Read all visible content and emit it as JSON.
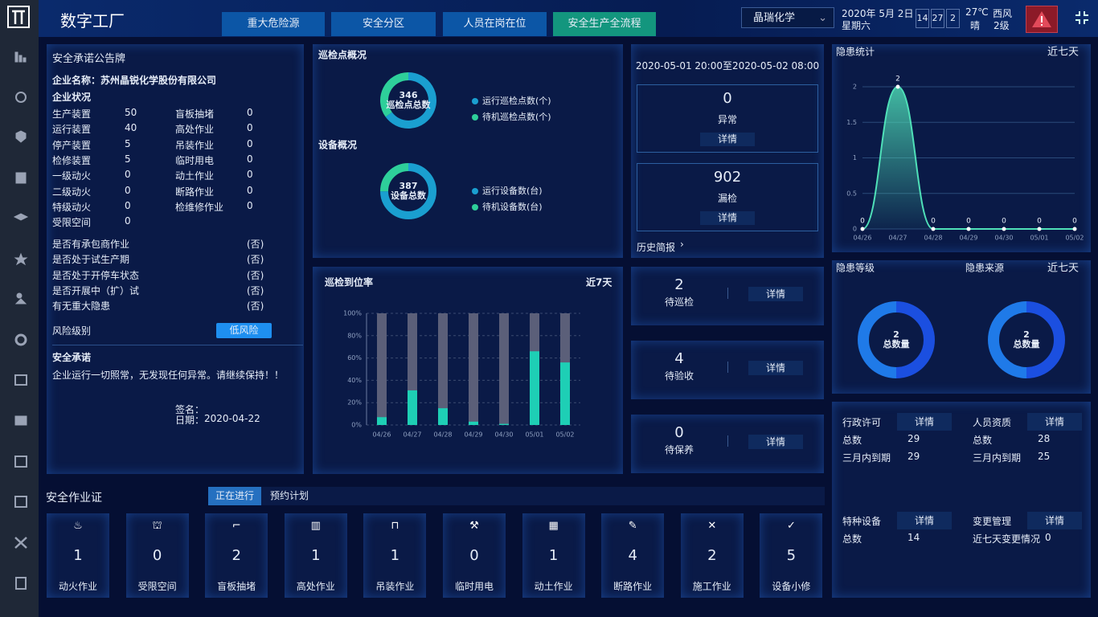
{
  "header": {
    "title": "数字工厂",
    "tabs": [
      "重大危险源",
      "安全分区",
      "人员在岗在位",
      "安全生产全流程"
    ],
    "company": "晶瑞化学",
    "date": "2020年 5月 2日",
    "weekday": "星期六",
    "clock": [
      "14",
      "27",
      "2"
    ],
    "temperature": "27℃",
    "weather": "晴",
    "wind": "西风",
    "wind_level": "2级"
  },
  "pledge": {
    "title": "安全承诺公告牌",
    "company_label": "企业名称：",
    "company": "苏州晶锐化学股份有限公司",
    "status_title": "企业状况",
    "left_rows": [
      [
        "生产装置",
        50
      ],
      [
        "运行装置",
        40
      ],
      [
        "停产装置",
        5
      ],
      [
        "检修装置",
        5
      ],
      [
        "一级动火",
        0
      ],
      [
        "二级动火",
        0
      ],
      [
        "特级动火",
        0
      ],
      [
        "受限空间",
        0
      ]
    ],
    "right_rows": [
      [
        "盲板抽堵",
        0
      ],
      [
        "高处作业",
        0
      ],
      [
        "吊装作业",
        0
      ],
      [
        "临时用电",
        0
      ],
      [
        "动土作业",
        0
      ],
      [
        "断路作业",
        0
      ],
      [
        "检维修作业",
        0
      ]
    ],
    "questions": [
      [
        "是否有承包商作业",
        "(否)"
      ],
      [
        "是否处于试生产期",
        "(否)"
      ],
      [
        "是否处于开停车状态",
        "(否)"
      ],
      [
        "是否开展中（扩）试",
        "(否)"
      ],
      [
        "有无重大隐患",
        "(否)"
      ]
    ],
    "risk_label": "风险级别",
    "risk": "低风险",
    "pledge_title": "安全承诺",
    "pledge_text": "企业运行一切照常，无发现任何异常。请继续保持！！",
    "sign_label": "签名：",
    "date_label": "日期：",
    "date": "2020-04-22"
  },
  "range": {
    "period": "2020-05-01 20:00至2020-05-02 08:00",
    "items": [
      {
        "value": 0,
        "label": "异常",
        "action": "详情"
      },
      {
        "value": 902,
        "label": "漏检",
        "action": "详情"
      }
    ],
    "history": "历史简报"
  },
  "tasks": [
    {
      "value": 2,
      "label": "待巡检",
      "action": "详情"
    },
    {
      "value": 4,
      "label": "待验收",
      "action": "详情"
    },
    {
      "value": 0,
      "label": "待保养",
      "action": "详情"
    }
  ],
  "licenses": [
    {
      "title": "行政许可",
      "action": "详情",
      "rows": [
        [
          "总数",
          29
        ],
        [
          "三月内到期",
          29
        ]
      ]
    },
    {
      "title": "人员资质",
      "action": "详情",
      "rows": [
        [
          "总数",
          28
        ],
        [
          "三月内到期",
          25
        ]
      ]
    },
    {
      "title": "特种设备",
      "action": "详情",
      "rows": [
        [
          "总数",
          14
        ]
      ]
    },
    {
      "title": "变更管理",
      "action": "详情",
      "rows": [
        [
          "近七天变更情况",
          0
        ]
      ]
    }
  ],
  "permits": {
    "title": "安全作业证",
    "tabs": [
      "正在进行",
      "预约计划"
    ],
    "items": [
      {
        "name": "动火作业",
        "value": 1
      },
      {
        "name": "受限空间",
        "value": 0
      },
      {
        "name": "盲板抽堵",
        "value": 2
      },
      {
        "name": "高处作业",
        "value": 1
      },
      {
        "name": "吊装作业",
        "value": 1
      },
      {
        "name": "临时用电",
        "value": 0
      },
      {
        "name": "动土作业",
        "value": 1
      },
      {
        "name": "断路作业",
        "value": 4
      },
      {
        "name": "施工作业",
        "value": 2
      },
      {
        "name": "设备小修",
        "value": 5
      }
    ]
  },
  "chart_data": [
    {
      "type": "pie",
      "title": "巡检点概况",
      "categories": [
        "运行巡检点数(个)",
        "待机巡检点数(个)"
      ],
      "values": [
        225,
        121
      ],
      "colors": [
        "#1a9fd0",
        "#2ecf9a"
      ],
      "total": 346,
      "center_label": "巡检点总数"
    },
    {
      "type": "pie",
      "title": "设备概况",
      "categories": [
        "运行设备数(台)",
        "待机设备数(台)"
      ],
      "values": [
        290,
        97
      ],
      "colors": [
        "#1a9fd0",
        "#2ecf9a"
      ],
      "total": 387,
      "center_label": "设备总数"
    },
    {
      "type": "bar",
      "title": "巡检到位率",
      "subtitle": "近7天",
      "categories": [
        "04/26",
        "04/27",
        "04/28",
        "04/29",
        "04/30",
        "05/01",
        "05/02"
      ],
      "values": [
        7,
        31,
        15,
        3,
        1,
        66,
        56
      ],
      "color": "#1ecfb5",
      "ylim": [
        0,
        100
      ],
      "yticks": [
        {
          "value": 0,
          "label": "0%"
        },
        {
          "value": 20,
          "label": "20%"
        },
        {
          "value": 40,
          "label": "40%"
        },
        {
          "value": 60,
          "label": "60%"
        },
        {
          "value": 80,
          "label": "80%"
        },
        {
          "value": 100,
          "label": "100%"
        }
      ],
      "grid": true
    },
    {
      "type": "area",
      "title": "隐患统计",
      "subtitle": "近七天",
      "categories": [
        "04/26",
        "04/27",
        "04/28",
        "04/29",
        "04/30",
        "05/01",
        "05/02"
      ],
      "values": [
        0,
        2,
        0,
        0,
        0,
        0,
        0
      ],
      "color": "#4fe0b8",
      "ylim": [
        0,
        2
      ],
      "yticks": [
        0,
        0.5,
        1,
        1.5,
        2
      ],
      "grid": true
    },
    {
      "type": "pie",
      "title": "隐患等级",
      "subtitle": "近七天",
      "values": [
        1,
        1
      ],
      "colors": [
        "#1b4fe0",
        "#1f7ae8"
      ],
      "total": 2,
      "center_label": "总数量"
    },
    {
      "type": "pie",
      "title": "隐患来源",
      "values": [
        1,
        1
      ],
      "colors": [
        "#1b4fe0",
        "#1f7ae8"
      ],
      "total": 2,
      "center_label": "总数量"
    }
  ]
}
